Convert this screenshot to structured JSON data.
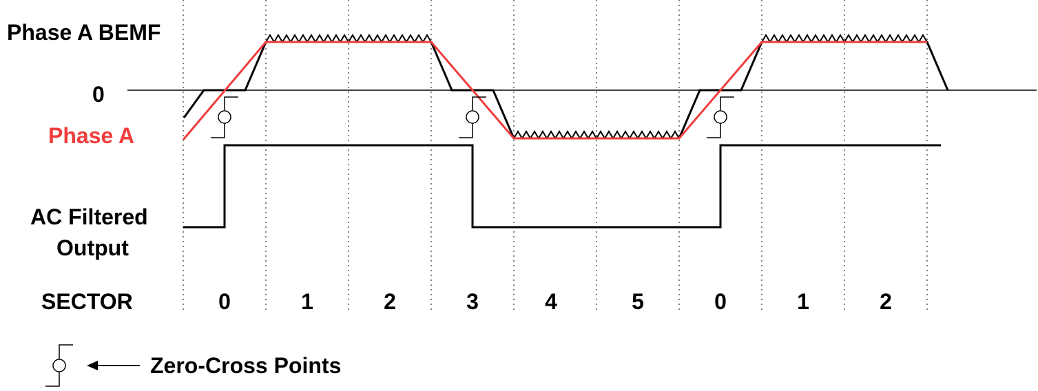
{
  "labels": {
    "bemf": "Phase A BEMF",
    "zero": "0",
    "phase_a": "Phase A",
    "ac_filtered_line1": "AC Filtered",
    "ac_filtered_line2": "Output",
    "sector": "SECTOR",
    "legend": "Zero-Cross Points"
  },
  "sectors": [
    "0",
    "1",
    "2",
    "3",
    "4",
    "5",
    "0",
    "1",
    "2"
  ],
  "colors": {
    "phase_a": "#f03c3c",
    "bemf": "#000000",
    "grid": "#555555"
  },
  "icons": {
    "zero_cross_marker": "zero-cross-icon",
    "legend_arrow": "left-arrow-icon"
  }
}
